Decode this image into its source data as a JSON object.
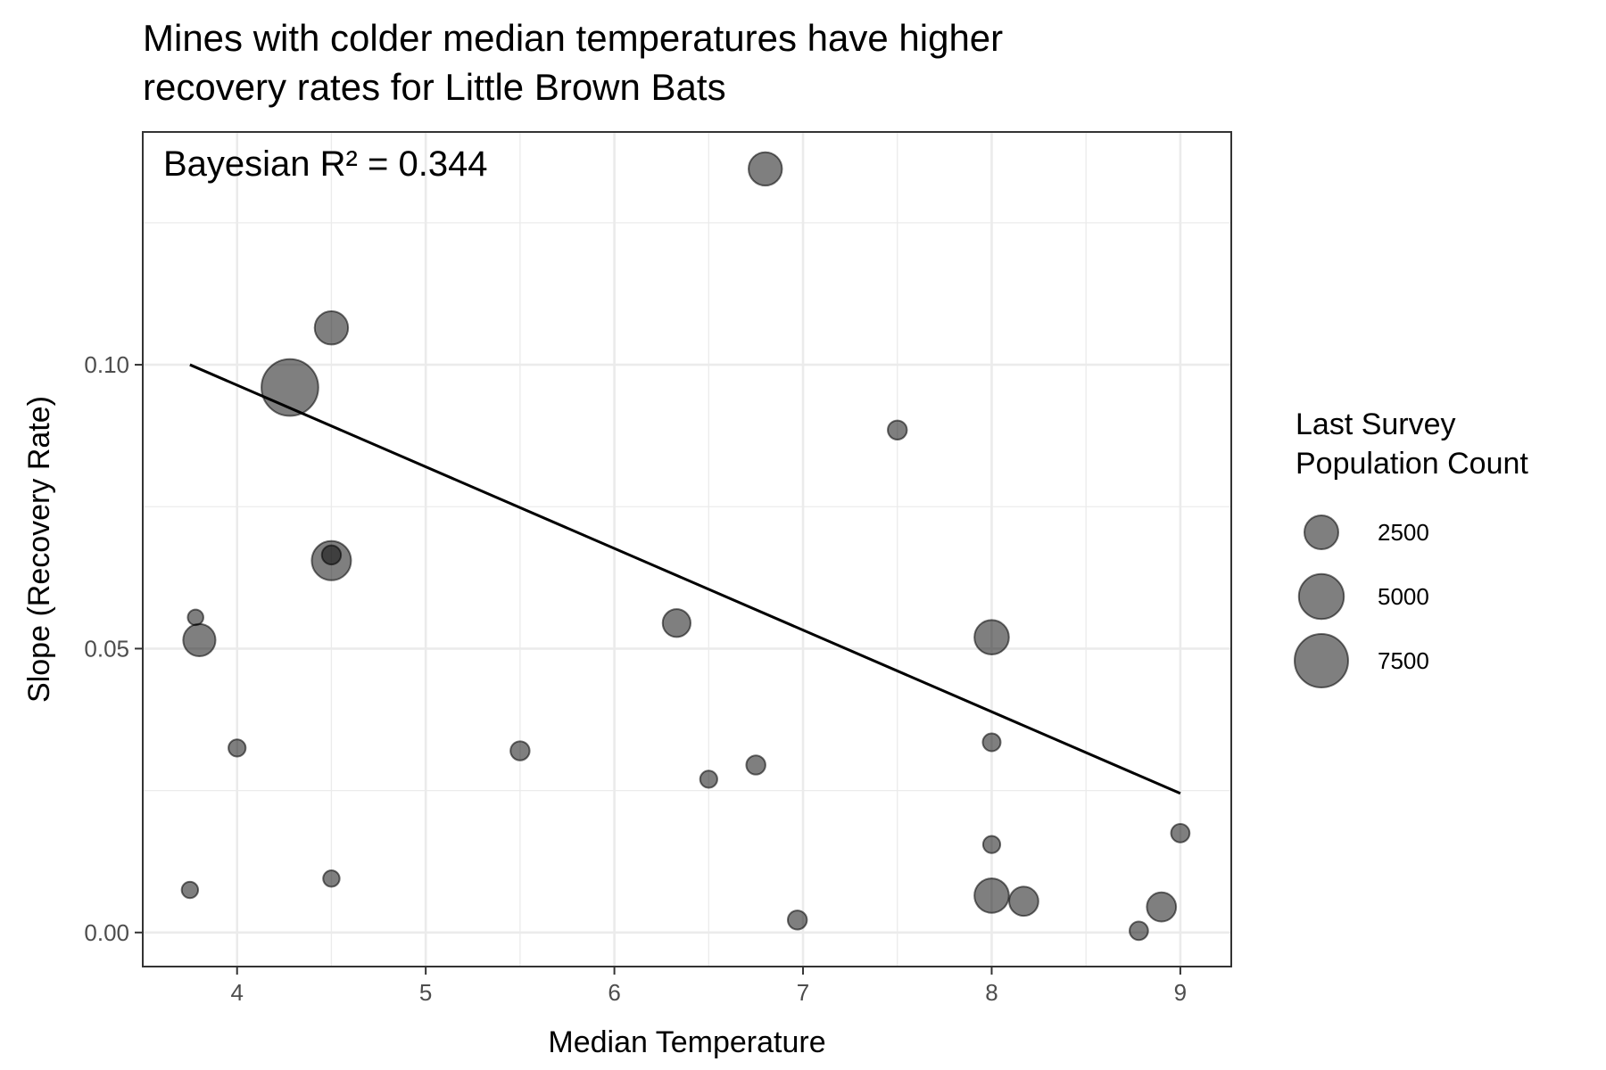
{
  "chart_data": {
    "type": "scatter",
    "title": "Mines with colder median temperatures have higher recovery rates for Little Brown Bats",
    "title_lines": [
      "Mines with colder median temperatures have higher",
      "recovery rates for Little Brown Bats"
    ],
    "annotation": "Bayesian R² = 0.344",
    "xlabel": "Median Temperature",
    "ylabel": "Slope (Recovery Rate)",
    "xlim": [
      3.5,
      9.27
    ],
    "ylim": [
      -0.006,
      0.141
    ],
    "x_ticks": [
      4,
      5,
      6,
      7,
      8,
      9
    ],
    "x_tick_labels": [
      "4",
      "5",
      "6",
      "7",
      "8",
      "9"
    ],
    "y_ticks": [
      0.0,
      0.05,
      0.1
    ],
    "y_tick_labels": [
      "0.00",
      "0.05",
      "0.10"
    ],
    "grid": true,
    "legend": {
      "title_lines": [
        "Last Survey",
        "Population Count"
      ],
      "position": "right",
      "entries": [
        {
          "label": "2500",
          "value": 2500
        },
        {
          "label": "5000",
          "value": 5000
        },
        {
          "label": "7500",
          "value": 7500
        }
      ]
    },
    "trend_line": {
      "x": [
        3.75,
        9.0
      ],
      "y": [
        0.1,
        0.0245
      ]
    },
    "points": [
      {
        "x": 6.8,
        "y": 0.1345,
        "size": 2400
      },
      {
        "x": 4.5,
        "y": 0.1065,
        "size": 2400
      },
      {
        "x": 4.28,
        "y": 0.096,
        "size": 8600
      },
      {
        "x": 7.5,
        "y": 0.0885,
        "size": 500
      },
      {
        "x": 4.5,
        "y": 0.0655,
        "size": 3600
      },
      {
        "x": 4.5,
        "y": 0.0665,
        "size": 500
      },
      {
        "x": 3.78,
        "y": 0.0555,
        "size": 250
      },
      {
        "x": 3.8,
        "y": 0.0515,
        "size": 2200
      },
      {
        "x": 6.33,
        "y": 0.0545,
        "size": 1500
      },
      {
        "x": 8.0,
        "y": 0.052,
        "size": 2600
      },
      {
        "x": 4.0,
        "y": 0.0325,
        "size": 350
      },
      {
        "x": 5.5,
        "y": 0.032,
        "size": 500
      },
      {
        "x": 8.0,
        "y": 0.0335,
        "size": 400
      },
      {
        "x": 6.5,
        "y": 0.027,
        "size": 350
      },
      {
        "x": 6.75,
        "y": 0.0295,
        "size": 500
      },
      {
        "x": 9.0,
        "y": 0.0175,
        "size": 450
      },
      {
        "x": 8.0,
        "y": 0.0155,
        "size": 350
      },
      {
        "x": 3.75,
        "y": 0.0075,
        "size": 300
      },
      {
        "x": 4.5,
        "y": 0.0095,
        "size": 300
      },
      {
        "x": 8.0,
        "y": 0.0065,
        "size": 2600
      },
      {
        "x": 8.17,
        "y": 0.0055,
        "size": 1700
      },
      {
        "x": 8.9,
        "y": 0.0045,
        "size": 1700
      },
      {
        "x": 6.97,
        "y": 0.0022,
        "size": 500
      },
      {
        "x": 8.78,
        "y": 0.0003,
        "size": 450
      }
    ]
  }
}
